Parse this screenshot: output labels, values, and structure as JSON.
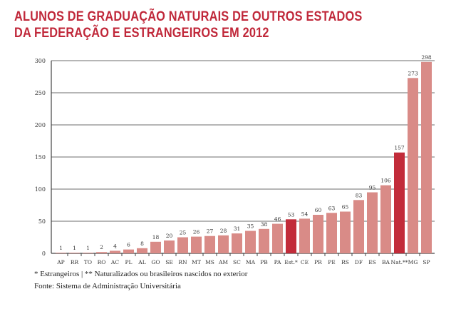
{
  "chart_data": {
    "type": "bar",
    "title": [
      "ALUNOS DE GRADUAÇÃO NATURAIS DE OUTROS ESTADOS",
      "DA FEDERAÇÃO E ESTRANGEIROS EM 2012"
    ],
    "xlabel": "",
    "ylabel": "",
    "ylim": [
      0,
      300
    ],
    "yticks": [
      0,
      50,
      100,
      150,
      200,
      250,
      300
    ],
    "grid": true,
    "categories": [
      "AP",
      "RR",
      "TO",
      "RO",
      "AC",
      "PL",
      "AL",
      "GO",
      "SE",
      "RN",
      "MT",
      "MS",
      "AM",
      "SC",
      "MA",
      "PB",
      "PA",
      "Est.*",
      "CE",
      "PR",
      "PE",
      "RS",
      "DF",
      "ES",
      "BA",
      "Nat.**",
      "MG",
      "SP"
    ],
    "values": [
      1,
      1,
      1,
      2,
      4,
      6,
      8,
      18,
      20,
      25,
      26,
      27,
      28,
      31,
      35,
      38,
      46,
      53,
      54,
      60,
      63,
      65,
      83,
      95,
      106,
      157,
      273,
      298
    ],
    "highlighted": [
      "Est.*",
      "Nat.**"
    ],
    "colors": {
      "bar": "#d98b87",
      "highlight": "#c22c3a",
      "grid": "#8a8a8a",
      "title": "#c0283a"
    }
  },
  "footnotes": {
    "legend": "* Estrangeiros | ** Naturalizados ou brasileiros nascidos no exterior",
    "source": "Fonte: Sistema de Administração Universitária"
  }
}
